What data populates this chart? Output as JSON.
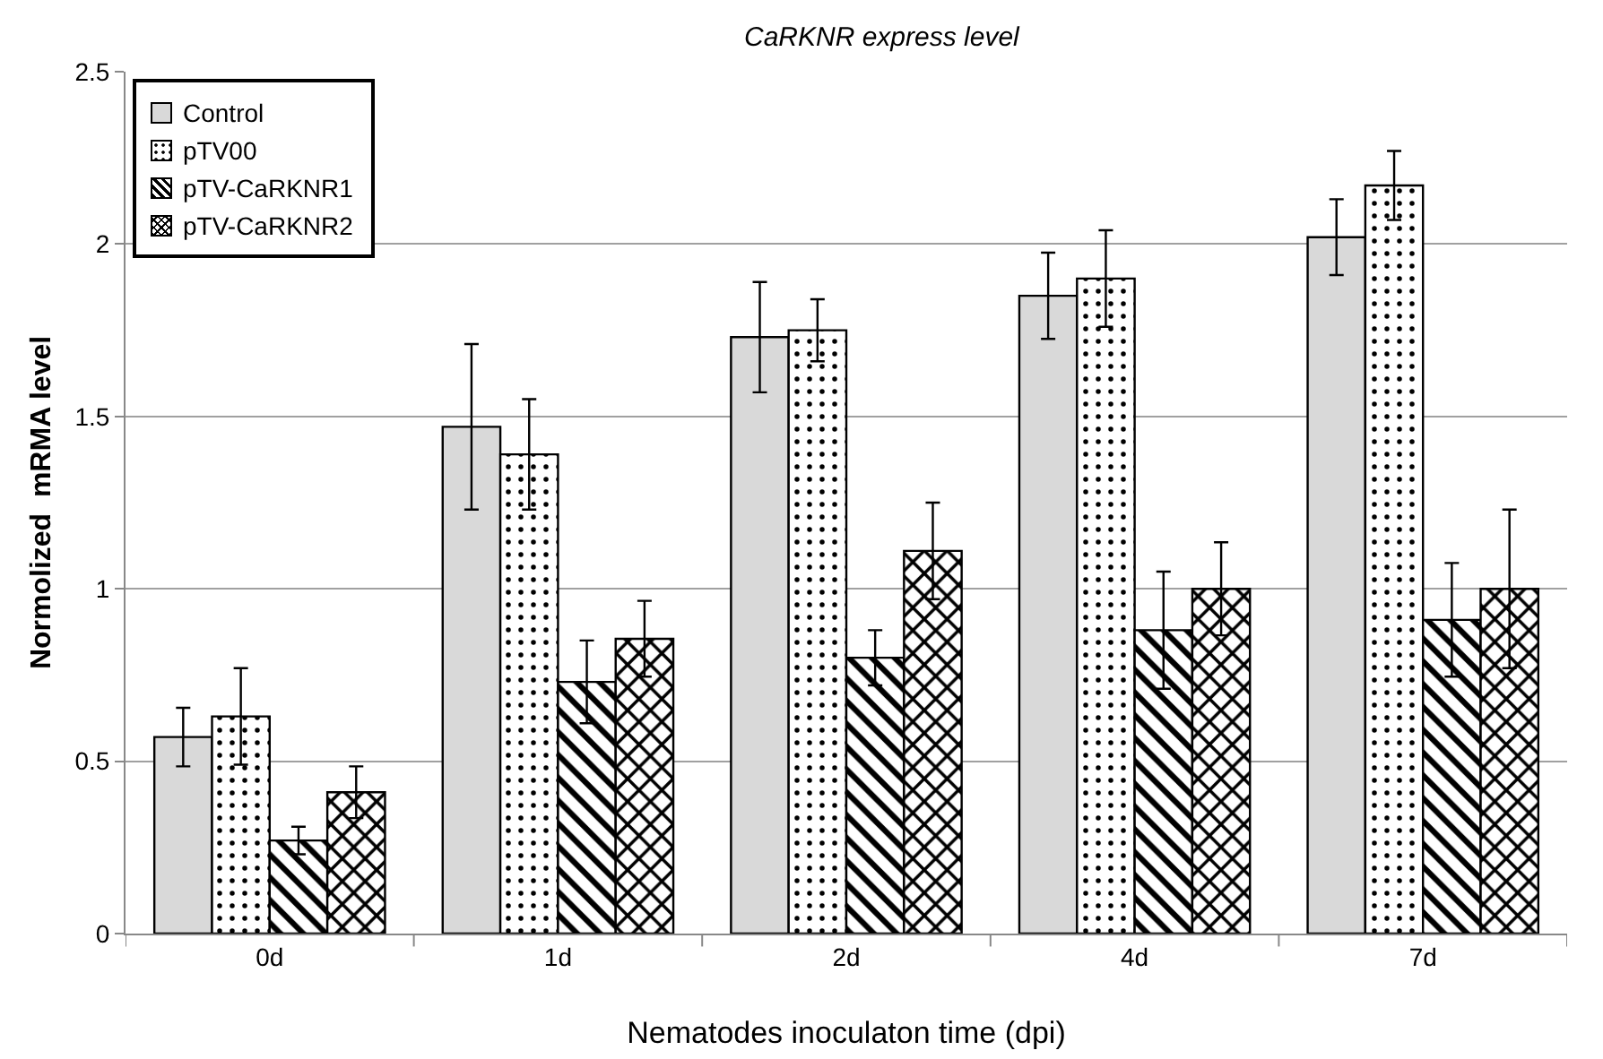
{
  "chart_data": {
    "type": "bar",
    "title": "CaRKNR express level",
    "xlabel": "Nematodes inoculaton time (dpi)",
    "ylabel": "Normolized  mRMA level",
    "categories": [
      "0d",
      "1d",
      "2d",
      "4d",
      "7d"
    ],
    "series": [
      {
        "name": "Control",
        "color": "#d9d9d9",
        "values": [
          0.57,
          1.47,
          1.73,
          1.85,
          2.02
        ],
        "errors": [
          0.085,
          0.24,
          0.16,
          0.125,
          0.11
        ]
      },
      {
        "name": "pTV00",
        "color": "#000000",
        "values": [
          0.63,
          1.39,
          1.75,
          1.9,
          2.17
        ],
        "errors": [
          0.14,
          0.16,
          0.09,
          0.14,
          0.1
        ]
      },
      {
        "name": "pTV-CaRKNR1",
        "color": "#000000",
        "values": [
          0.27,
          0.73,
          0.8,
          0.88,
          0.91
        ],
        "errors": [
          0.04,
          0.12,
          0.08,
          0.17,
          0.165
        ]
      },
      {
        "name": "pTV-CaRKNR2",
        "color": "#000000",
        "values": [
          0.41,
          0.855,
          1.11,
          1.0,
          1.0
        ],
        "errors": [
          0.075,
          0.11,
          0.14,
          0.135,
          0.23
        ]
      }
    ],
    "ylim": [
      0,
      2.5
    ],
    "yticks": [
      0,
      0.5,
      1,
      1.5,
      2,
      2.5
    ],
    "grid": "y",
    "legend": "top left"
  }
}
